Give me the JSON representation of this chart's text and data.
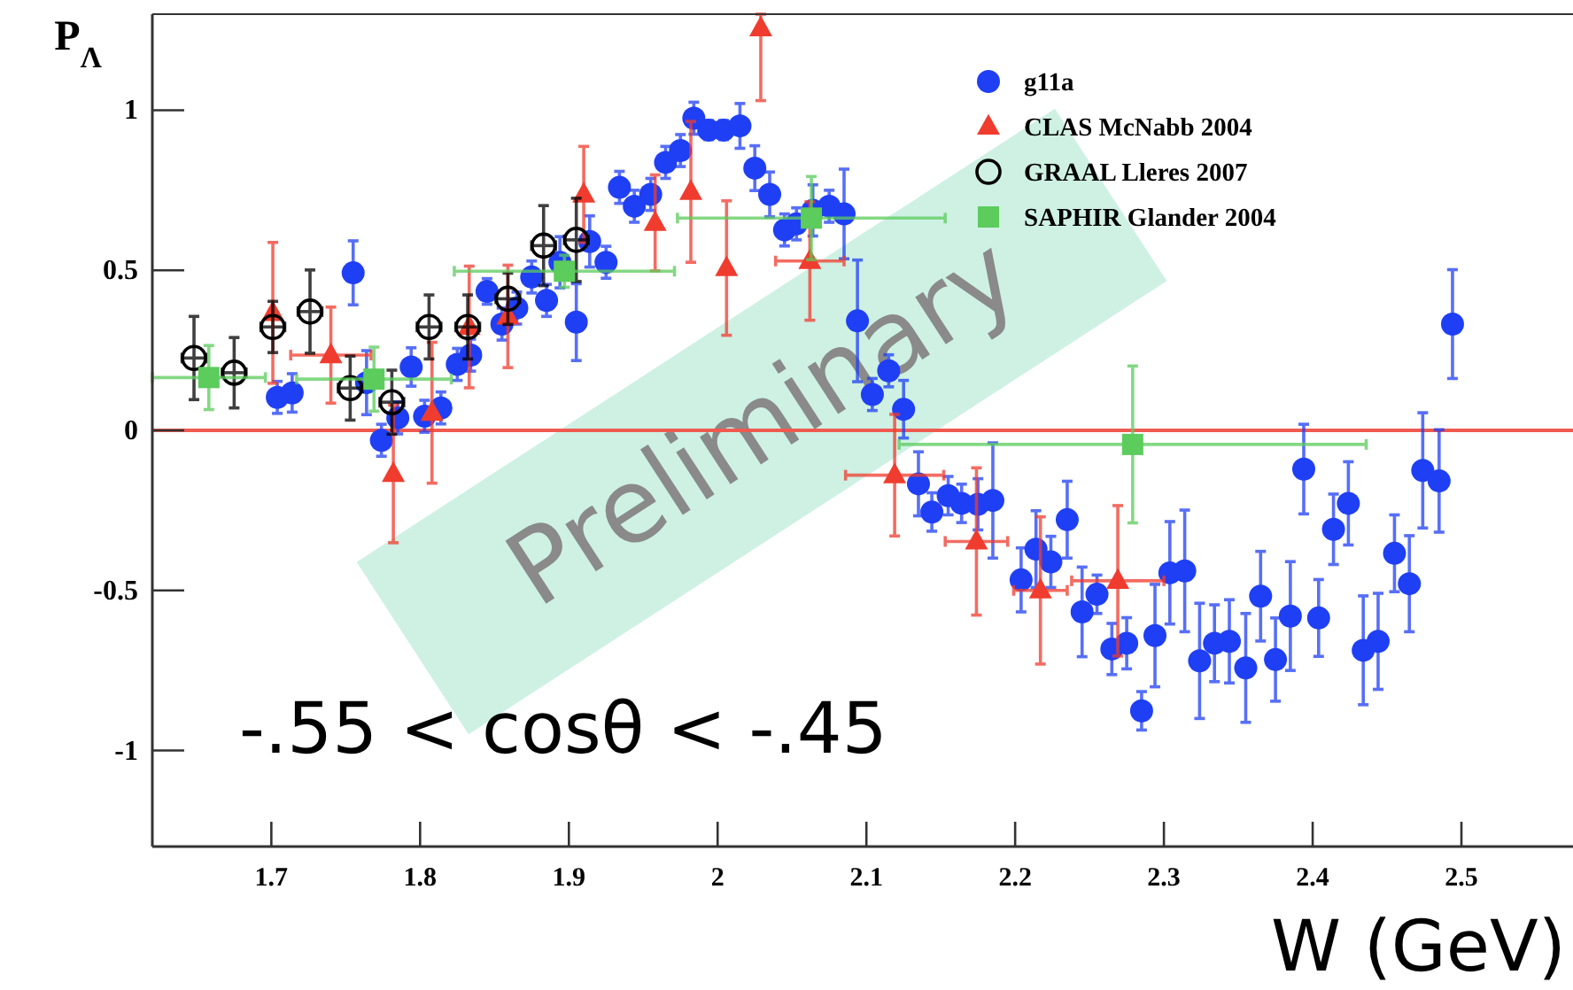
{
  "chart_data": {
    "type": "scatter",
    "xlabel": "W (GeV)",
    "ylabel": "P$_{Λ}$",
    "xlim": [
      1.62,
      2.575
    ],
    "ylim": [
      -1.3,
      1.3
    ],
    "xticks": [
      1.7,
      1.8,
      1.9,
      2,
      2.1,
      2.2,
      2.3,
      2.4,
      2.5
    ],
    "yticks": [
      -1,
      -0.5,
      0,
      0.5,
      1
    ],
    "grid": false,
    "legend": "top right",
    "ref_lines": [
      {
        "axis": "y",
        "value": 0,
        "color": "#ef5a50"
      }
    ],
    "annotations": [
      "-.55 < cosθ < -.45",
      "Preliminary"
    ],
    "series": [
      {
        "name": "g11a",
        "color": "#1f3ff5",
        "marker": "circle",
        "x": [
          1.704,
          1.714,
          1.755,
          1.764,
          1.774,
          1.785,
          1.794,
          1.803,
          1.814,
          1.825,
          1.834,
          1.845,
          1.855,
          1.865,
          1.875,
          1.885,
          1.894,
          1.905,
          1.914,
          1.925,
          1.934,
          1.944,
          1.955,
          1.965,
          1.975,
          1.984,
          1.994,
          2.004,
          2.015,
          2.025,
          2.035,
          2.045,
          2.053,
          2.064,
          2.075,
          2.085,
          2.094,
          2.104,
          2.115,
          2.125,
          2.135,
          2.144,
          2.155,
          2.164,
          2.175,
          2.185,
          2.204,
          2.214,
          2.224,
          2.235,
          2.245,
          2.255,
          2.265,
          2.275,
          2.285,
          2.294,
          2.304,
          2.314,
          2.324,
          2.334,
          2.344,
          2.355,
          2.365,
          2.375,
          2.385,
          2.394,
          2.404,
          2.414,
          2.424,
          2.434,
          2.444,
          2.455,
          2.465,
          2.474,
          2.485,
          2.494
        ],
        "values": [
          0.103,
          0.117,
          0.492,
          0.149,
          -0.031,
          0.039,
          0.198,
          0.044,
          0.07,
          0.206,
          0.235,
          0.434,
          0.332,
          0.382,
          0.479,
          0.406,
          0.525,
          0.338,
          0.59,
          0.525,
          0.759,
          0.7,
          0.737,
          0.837,
          0.874,
          0.975,
          0.938,
          0.938,
          0.951,
          0.819,
          0.737,
          0.626,
          0.645,
          0.687,
          0.7,
          0.676,
          0.342,
          0.112,
          0.186,
          0.066,
          -0.167,
          -0.255,
          -0.204,
          -0.228,
          -0.231,
          -0.219,
          -0.467,
          -0.371,
          -0.411,
          -0.279,
          -0.567,
          -0.512,
          -0.683,
          -0.665,
          -0.876,
          -0.641,
          -0.445,
          -0.439,
          -0.72,
          -0.665,
          -0.659,
          -0.742,
          -0.518,
          -0.716,
          -0.58,
          -0.121,
          -0.586,
          -0.309,
          -0.228,
          -0.687,
          -0.659,
          -0.384,
          -0.479,
          -0.125,
          -0.158,
          0.332
        ],
        "errors": [
          0.05,
          0.06,
          0.1,
          0.1,
          0.05,
          0.05,
          0.06,
          0.05,
          0.05,
          0.05,
          0.05,
          0.04,
          0.05,
          0.05,
          0.05,
          0.05,
          0.08,
          0.12,
          0.08,
          0.05,
          0.05,
          0.05,
          0.05,
          0.05,
          0.05,
          0.05,
          0.03,
          0.03,
          0.07,
          0.07,
          0.07,
          0.05,
          0.05,
          0.08,
          0.05,
          0.14,
          0.19,
          0.05,
          0.05,
          0.09,
          0.1,
          0.06,
          0.06,
          0.06,
          0.08,
          0.18,
          0.1,
          0.12,
          0.08,
          0.12,
          0.14,
          0.06,
          0.08,
          0.08,
          0.06,
          0.16,
          0.16,
          0.19,
          0.18,
          0.12,
          0.13,
          0.17,
          0.14,
          0.13,
          0.17,
          0.14,
          0.12,
          0.11,
          0.13,
          0.17,
          0.15,
          0.12,
          0.15,
          0.18,
          0.16,
          0.17
        ]
      },
      {
        "name": "CLAS McNabb 2004",
        "color": "#f03c2e",
        "marker": "triangle",
        "x": [
          1.701,
          1.74,
          1.782,
          1.808,
          1.833,
          1.859,
          1.91,
          1.958,
          1.982,
          2.006,
          2.029,
          2.062,
          2.119,
          2.174,
          2.217,
          2.269
        ],
        "values": [
          0.367,
          0.235,
          -0.136,
          0.055,
          0.323,
          0.356,
          0.737,
          0.648,
          0.745,
          0.507,
          1.256,
          0.529,
          -0.14,
          -0.347,
          -0.5,
          -0.47
        ],
        "errors": [
          0.22,
          0.15,
          0.215,
          0.22,
          0.19,
          0.16,
          0.15,
          0.15,
          0.22,
          0.21,
          [
            1.03,
            1.3
          ],
          0.185,
          0.19,
          0.23,
          0.23,
          0.235
        ],
        "xerrors": [
          null,
          0.027,
          null,
          null,
          null,
          null,
          null,
          null,
          null,
          null,
          null,
          0.023,
          0.033,
          0.021,
          0.018,
          0.031
        ]
      },
      {
        "name": "GRAAL Lleres 2007",
        "color": "#000000",
        "marker": "circle",
        "x": [
          1.648,
          1.675,
          1.701,
          1.726,
          1.753,
          1.781,
          1.806,
          1.832,
          1.859,
          1.883,
          1.905
        ],
        "values": [
          0.226,
          0.18,
          0.323,
          0.371,
          0.132,
          0.088,
          0.323,
          0.323,
          0.411,
          0.577,
          0.595
        ],
        "errors": [
          0.13,
          0.11,
          0.08,
          0.13,
          0.1,
          0.1,
          0.1,
          0.1,
          0.08,
          0.125,
          0.13
        ],
        "xerrors": [
          0.008,
          0.008,
          0.008,
          0.008,
          0.008,
          0.008,
          0.008,
          0.008,
          0.008,
          0.008,
          0.008
        ]
      },
      {
        "name": "SAPHIR Glander 2004",
        "color": "#5ccc5c",
        "marker": "square",
        "x": [
          1.658,
          1.769,
          1.897,
          2.063,
          2.279
        ],
        "values": [
          0.165,
          0.16,
          0.497,
          0.663,
          -0.044
        ],
        "errors": [
          0.1,
          0.1,
          0.05,
          0.13,
          0.245
        ],
        "xerrors": [
          0.038,
          0.052,
          0.074,
          0.09,
          0.157
        ]
      }
    ]
  }
}
